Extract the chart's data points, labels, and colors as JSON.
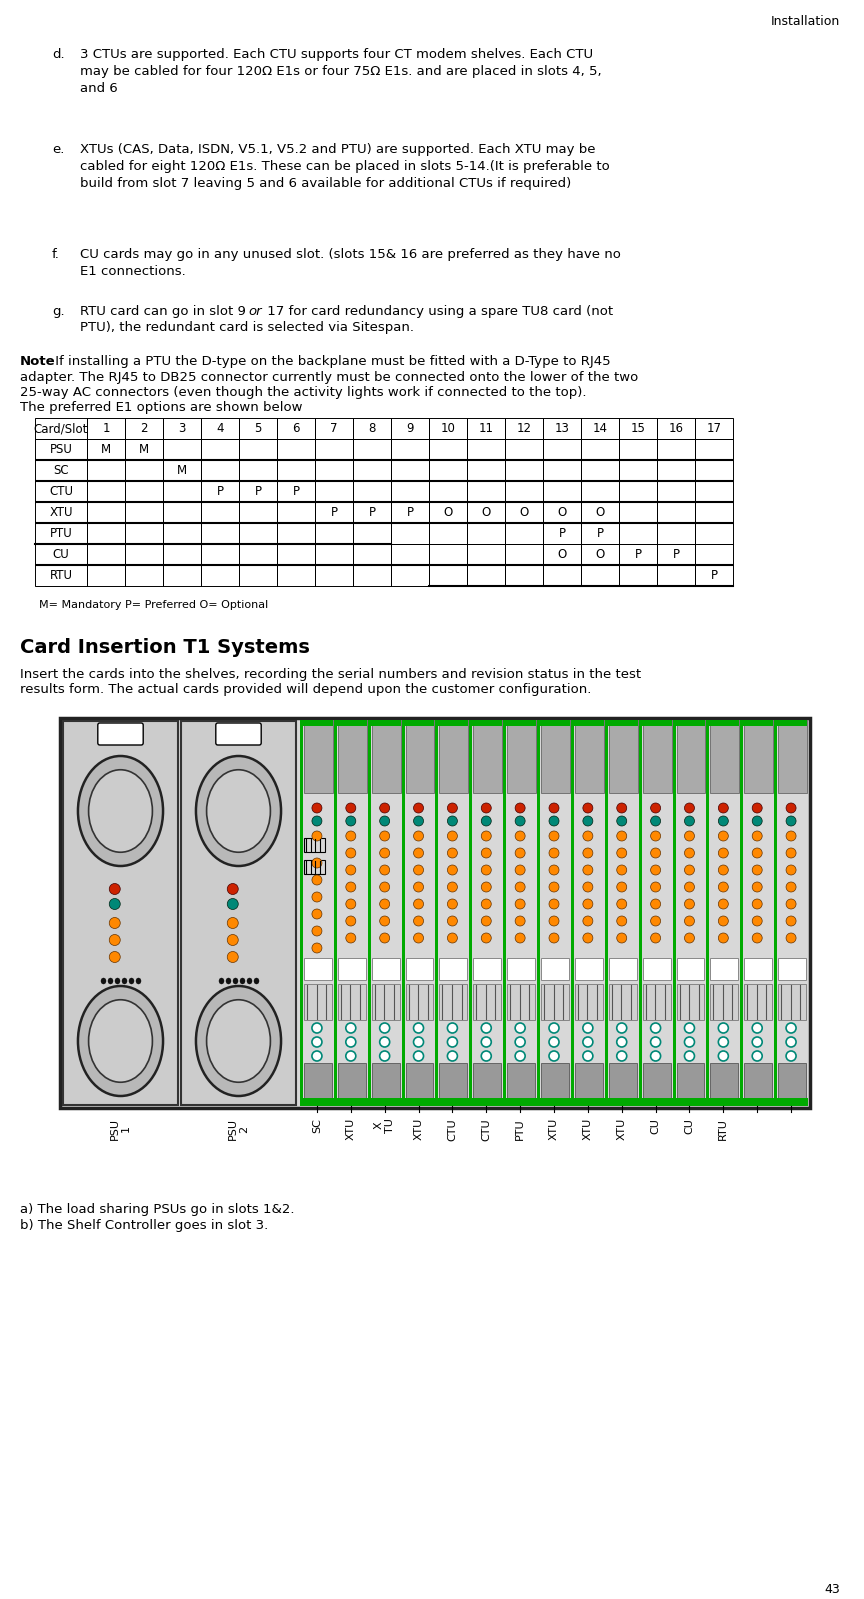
{
  "title_top_right": "Installation",
  "page_number": "43",
  "bullet_d": "3 CTUs are supported. Each CTU supports four CT modem shelves. Each CTU\nmay be cabled for four 120Ω E1s or four 75Ω E1s. and are placed in slots 4, 5,\nand 6",
  "bullet_e": "XTUs (CAS, Data, ISDN, V5.1, V5.2 and PTU) are supported. Each XTU may be\ncabled for eight 120Ω E1s. These can be placed in slots 5-14.(It is preferable to\nbuild from slot 7 leaving 5 and 6 available for additional CTUs if required)",
  "bullet_f": "CU cards may go in any unused slot. (slots 15& 16 are preferred as they have no\nE1 connections.",
  "bullet_g_pre": "RTU card can go in slot 9 ",
  "bullet_g_italic": "or",
  "bullet_g_post": " 17 for card redundancy using a spare TU8 card (not",
  "bullet_g_line2": "PTU), the redundant card is selected via Sitespan.",
  "note_bold": "Note",
  "note_rest": " If installing a PTU the D-type on the backplane must be fitted with a D-Type to RJ45",
  "note_line2": "adapter. The RJ45 to DB25 connector currently must be connected onto the lower of the two",
  "note_line3": "25-way AC connectors (even though the activity lights work if connected to the top).",
  "note_line4": "The preferred E1 options are shown below",
  "table_header": [
    "Card/Slot",
    "1",
    "2",
    "3",
    "4",
    "5",
    "6",
    "7",
    "8",
    "9",
    "10",
    "11",
    "12",
    "13",
    "14",
    "15",
    "16",
    "17"
  ],
  "table_rows": [
    [
      "PSU",
      "M",
      "M",
      "",
      "",
      "",
      "",
      "",
      "",
      "",
      "",
      "",
      "",
      "",
      "",
      "",
      "",
      ""
    ],
    [
      "SC",
      "",
      "",
      "M",
      "",
      "",
      "",
      "",
      "",
      "",
      "",
      "",
      "",
      "",
      "",
      "",
      "",
      ""
    ],
    [
      "CTU",
      "",
      "",
      "",
      "P",
      "P",
      "P",
      "",
      "",
      "",
      "",
      "",
      "",
      "",
      "",
      "",
      "",
      ""
    ],
    [
      "XTU",
      "",
      "",
      "",
      "",
      "",
      "",
      "P",
      "P",
      "P",
      "O",
      "O",
      "O",
      "O",
      "O",
      "",
      "",
      ""
    ],
    [
      "PTU",
      "",
      "",
      "",
      "",
      "",
      "",
      "",
      "",
      "",
      "",
      "",
      "",
      "P",
      "P",
      "",
      "",
      ""
    ],
    [
      "CU",
      "",
      "",
      "",
      "",
      "",
      "",
      "",
      "",
      "",
      "",
      "",
      "",
      "O",
      "O",
      "P",
      "P",
      ""
    ],
    [
      "RTU",
      "",
      "",
      "",
      "",
      "",
      "",
      "",
      "",
      "",
      "",
      "",
      "",
      "",
      "",
      "",
      "",
      "P"
    ]
  ],
  "legend_text": "M= Mandatory P= Preferred O= Optional",
  "section_title": "Card Insertion T1 Systems",
  "insert_text_line1": "Insert the cards into the shelves, recording the serial numbers and revision status in the test",
  "insert_text_line2": "results form. The actual cards provided will depend upon the customer configuration.",
  "footer_a": "a) The load sharing PSUs go in slots 1&2.",
  "footer_b": "b) The Shelf Controller goes in slot 3.",
  "bg_color": "#ffffff",
  "green_color": "#00aa00",
  "red_color": "#cc2200",
  "orange_color": "#ff8800",
  "teal_color": "#008877",
  "shelf_border_color": "#222222",
  "psu_bg": "#d0d0d0",
  "card_top_gray": "#aaaaaa",
  "card_bottom_gray": "#888888",
  "shelf_outer_bg": "#e0e0e0"
}
